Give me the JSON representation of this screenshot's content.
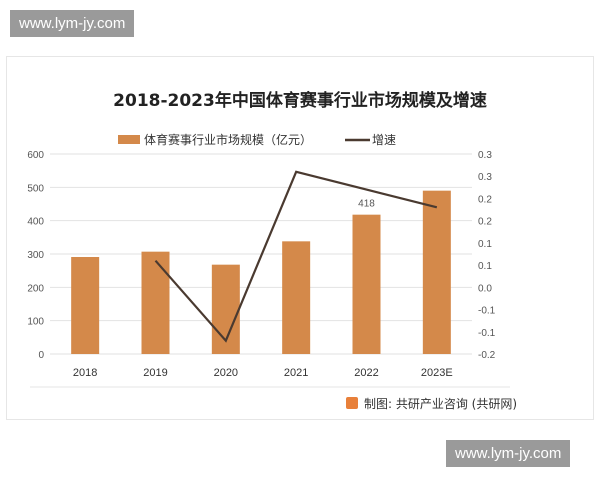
{
  "watermark": "www.lym-jy.com",
  "source": "制图: 共研产业咨询 (共研网)",
  "chart_data": {
    "type": "bar+line",
    "title": "2018-2023年中国体育赛事行业市场规模及增速",
    "categories": [
      "2018",
      "2019",
      "2020",
      "2021",
      "2022",
      "2023E"
    ],
    "series": [
      {
        "name": "体育赛事行业市场规模（亿元）",
        "type": "bar",
        "axis": "left",
        "color": "#d4894a",
        "values": [
          291,
          307,
          268,
          338,
          418,
          490
        ]
      },
      {
        "name": "增速",
        "type": "line",
        "axis": "right",
        "color": "#4a3a30",
        "values": [
          null,
          0.06,
          -0.12,
          0.26,
          0.22,
          0.18
        ]
      }
    ],
    "data_labels": [
      {
        "category": "2022",
        "text": "418"
      }
    ],
    "left_axis": {
      "ylim": [
        0,
        600
      ],
      "ticks": [
        "0",
        "100",
        "200",
        "300",
        "400",
        "500",
        "600"
      ]
    },
    "right_axis": {
      "ylim": [
        -0.15,
        0.3
      ],
      "ticks": [
        "-0.2",
        "-0.1",
        "-0.1",
        "0.0",
        "0.1",
        "0.1",
        "0.2",
        "0.2",
        "0.3",
        "0.3"
      ]
    },
    "grid": true,
    "legend": "top"
  }
}
